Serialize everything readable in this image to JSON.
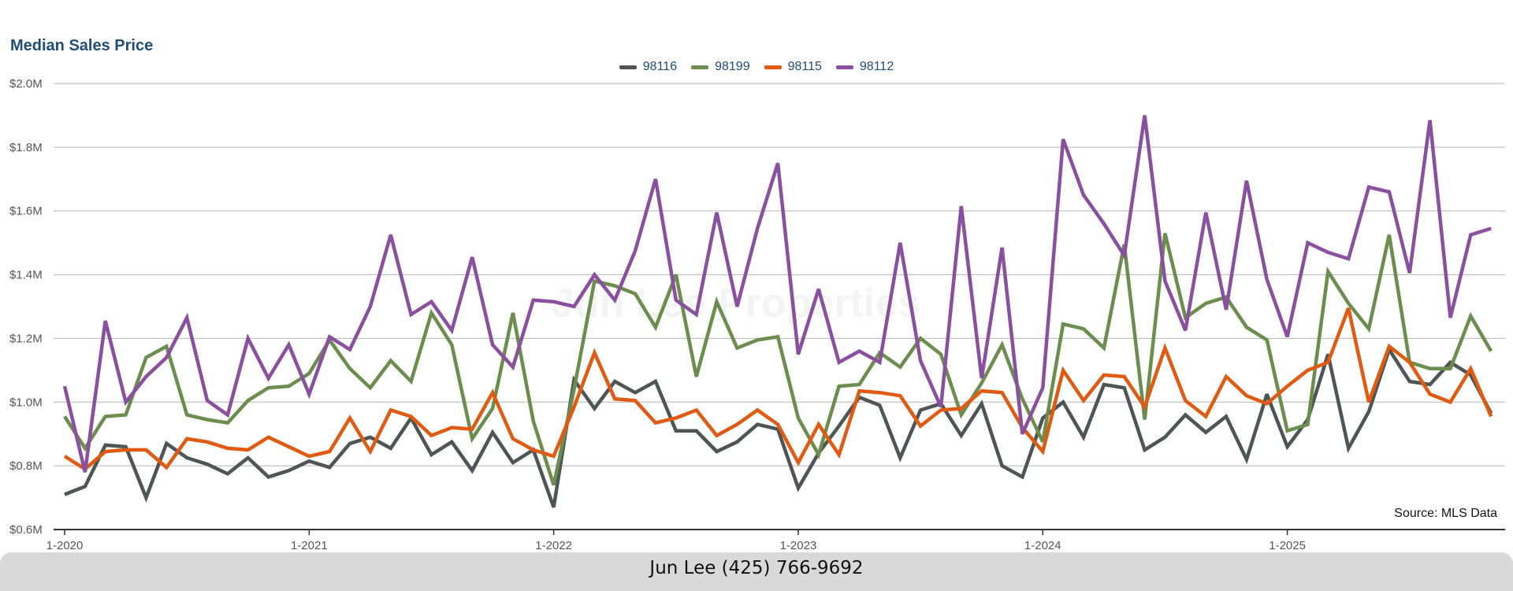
{
  "chart_data": {
    "type": "line",
    "title": "Median Sales Price",
    "y_tick_labels": [
      "$0.6M",
      "$0.8M",
      "$1.0M",
      "$1.2M",
      "$1.4M",
      "$1.6M",
      "$1.8M",
      "$2.0M"
    ],
    "y_ticks": [
      0.6,
      0.8,
      1.0,
      1.2,
      1.4,
      1.6,
      1.8,
      2.0
    ],
    "ylim": [
      0.6,
      2.0
    ],
    "x_tick_labels": [
      "1-2020",
      "1-2021",
      "1-2022",
      "1-2023",
      "1-2024",
      "1-2025"
    ],
    "x_start": "1-2020",
    "x_end": "11-2025",
    "grid": true,
    "legend_position": "top-center",
    "source": "Source: MLS Data",
    "watermark": "Jun Lee Properties",
    "series": [
      {
        "name": "98116",
        "color": "#4d5557",
        "values": [
          0.71,
          0.735,
          0.865,
          0.86,
          0.7,
          0.87,
          0.825,
          0.805,
          0.775,
          0.825,
          0.765,
          0.785,
          0.815,
          0.795,
          0.87,
          0.89,
          0.855,
          0.95,
          0.835,
          0.875,
          0.785,
          0.905,
          0.81,
          0.85,
          0.67,
          1.07,
          0.98,
          1.065,
          1.03,
          1.065,
          0.91,
          0.91,
          0.845,
          0.875,
          0.93,
          0.915,
          0.73,
          0.84,
          0.925,
          1.015,
          0.99,
          0.825,
          0.975,
          0.995,
          0.895,
          0.995,
          0.8,
          0.765,
          0.95,
          1.0,
          0.89,
          1.055,
          1.045,
          0.85,
          0.89,
          0.96,
          0.905,
          0.955,
          0.82,
          1.025,
          0.86,
          0.945,
          1.15,
          0.855,
          0.97,
          1.165,
          1.065,
          1.055,
          1.125,
          1.085,
          0.965
        ]
      },
      {
        "name": "98199",
        "color": "#6b8e4e",
        "values": [
          0.955,
          0.855,
          0.955,
          0.96,
          1.14,
          1.175,
          0.96,
          0.945,
          0.935,
          1.005,
          1.045,
          1.05,
          1.09,
          1.195,
          1.105,
          1.045,
          1.13,
          1.065,
          1.28,
          1.18,
          0.885,
          0.98,
          1.28,
          0.94,
          0.74,
          1.04,
          1.38,
          1.365,
          1.34,
          1.235,
          1.4,
          1.08,
          1.315,
          1.17,
          1.195,
          1.205,
          0.95,
          0.835,
          1.05,
          1.055,
          1.155,
          1.11,
          1.2,
          1.15,
          0.96,
          1.06,
          1.18,
          1.01,
          0.875,
          1.245,
          1.23,
          1.17,
          1.495,
          0.945,
          1.53,
          1.265,
          1.31,
          1.33,
          1.235,
          1.195,
          0.91,
          0.93,
          1.41,
          1.31,
          1.23,
          1.525,
          1.125,
          1.105,
          1.105,
          1.27,
          1.16
        ]
      },
      {
        "name": "98115",
        "color": "#e05a12",
        "values": [
          0.83,
          0.79,
          0.845,
          0.85,
          0.85,
          0.795,
          0.885,
          0.875,
          0.855,
          0.85,
          0.89,
          0.86,
          0.83,
          0.845,
          0.95,
          0.845,
          0.975,
          0.955,
          0.895,
          0.92,
          0.915,
          1.03,
          0.885,
          0.85,
          0.83,
          0.985,
          1.155,
          1.01,
          1.005,
          0.935,
          0.95,
          0.975,
          0.895,
          0.93,
          0.975,
          0.93,
          0.81,
          0.93,
          0.835,
          1.035,
          1.03,
          1.02,
          0.925,
          0.975,
          0.98,
          1.035,
          1.03,
          0.92,
          0.845,
          1.1,
          1.005,
          1.085,
          1.08,
          0.985,
          1.17,
          1.005,
          0.955,
          1.08,
          1.02,
          0.995,
          1.05,
          1.1,
          1.125,
          1.295,
          1.0,
          1.175,
          1.125,
          1.025,
          1.0,
          1.105,
          0.955
        ]
      },
      {
        "name": "98112",
        "color": "#8b4fa0",
        "values": [
          1.05,
          0.78,
          1.255,
          1.0,
          1.08,
          1.14,
          1.265,
          1.005,
          0.96,
          1.2,
          1.075,
          1.18,
          1.025,
          1.205,
          1.165,
          1.3,
          1.525,
          1.275,
          1.315,
          1.225,
          1.455,
          1.18,
          1.11,
          1.32,
          1.315,
          1.3,
          1.4,
          1.32,
          1.475,
          1.7,
          1.32,
          1.275,
          1.595,
          1.3,
          1.545,
          1.75,
          1.15,
          1.355,
          1.125,
          1.16,
          1.125,
          1.5,
          1.13,
          0.985,
          1.615,
          1.075,
          1.485,
          0.9,
          1.045,
          1.825,
          1.65,
          1.56,
          1.46,
          1.9,
          1.38,
          1.225,
          1.595,
          1.29,
          1.695,
          1.385,
          1.205,
          1.5,
          1.47,
          1.45,
          1.675,
          1.66,
          1.405,
          1.885,
          1.265,
          1.525,
          1.545
        ]
      }
    ]
  },
  "footer": {
    "text": "Jun Lee (425) 766-9692"
  }
}
